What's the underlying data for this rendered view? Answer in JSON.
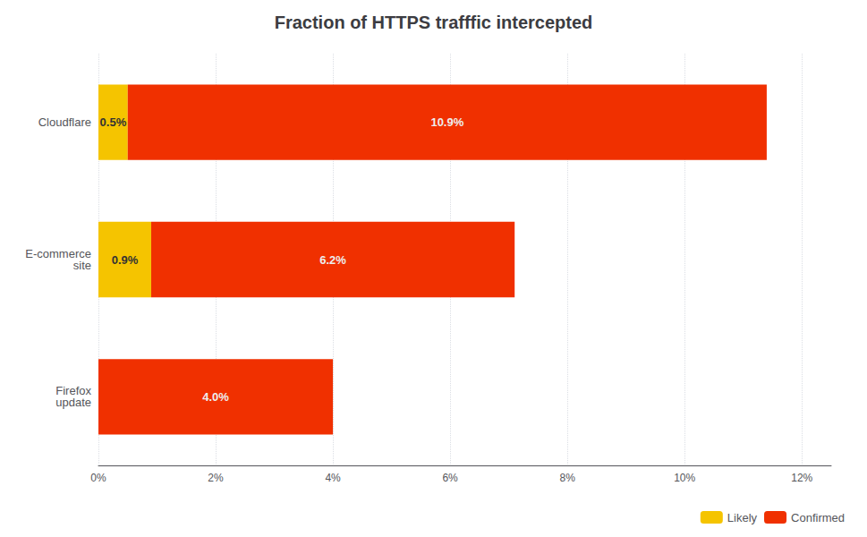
{
  "chart_data": {
    "type": "bar",
    "title": "Fraction of HTTPS trafffic intercepted",
    "orientation": "horizontal",
    "stacked": true,
    "categories": [
      "Firefox\nupdate",
      "E-commerce\nsite",
      "Cloudflare"
    ],
    "series": [
      {
        "name": "Likely",
        "color": "#F5C400",
        "values": [
          0.0,
          0.9,
          0.5
        ],
        "value_labels": [
          null,
          "0.9%",
          "0.5%"
        ]
      },
      {
        "name": "Confirmed",
        "color": "#F03000",
        "values": [
          4.0,
          6.2,
          10.9
        ],
        "value_labels": [
          "4.0%",
          "6.2%",
          "10.9%"
        ]
      }
    ],
    "xlim": [
      0,
      12.5
    ],
    "xticks": [
      {
        "value": 0,
        "label": "0%"
      },
      {
        "value": 2,
        "label": "2%"
      },
      {
        "value": 4,
        "label": "4%"
      },
      {
        "value": 6,
        "label": "6%"
      },
      {
        "value": 8,
        "label": "8%"
      },
      {
        "value": 10,
        "label": "10%"
      },
      {
        "value": 12,
        "label": "12%"
      }
    ],
    "grid": true,
    "legend": "lower right",
    "data_labels": true
  }
}
